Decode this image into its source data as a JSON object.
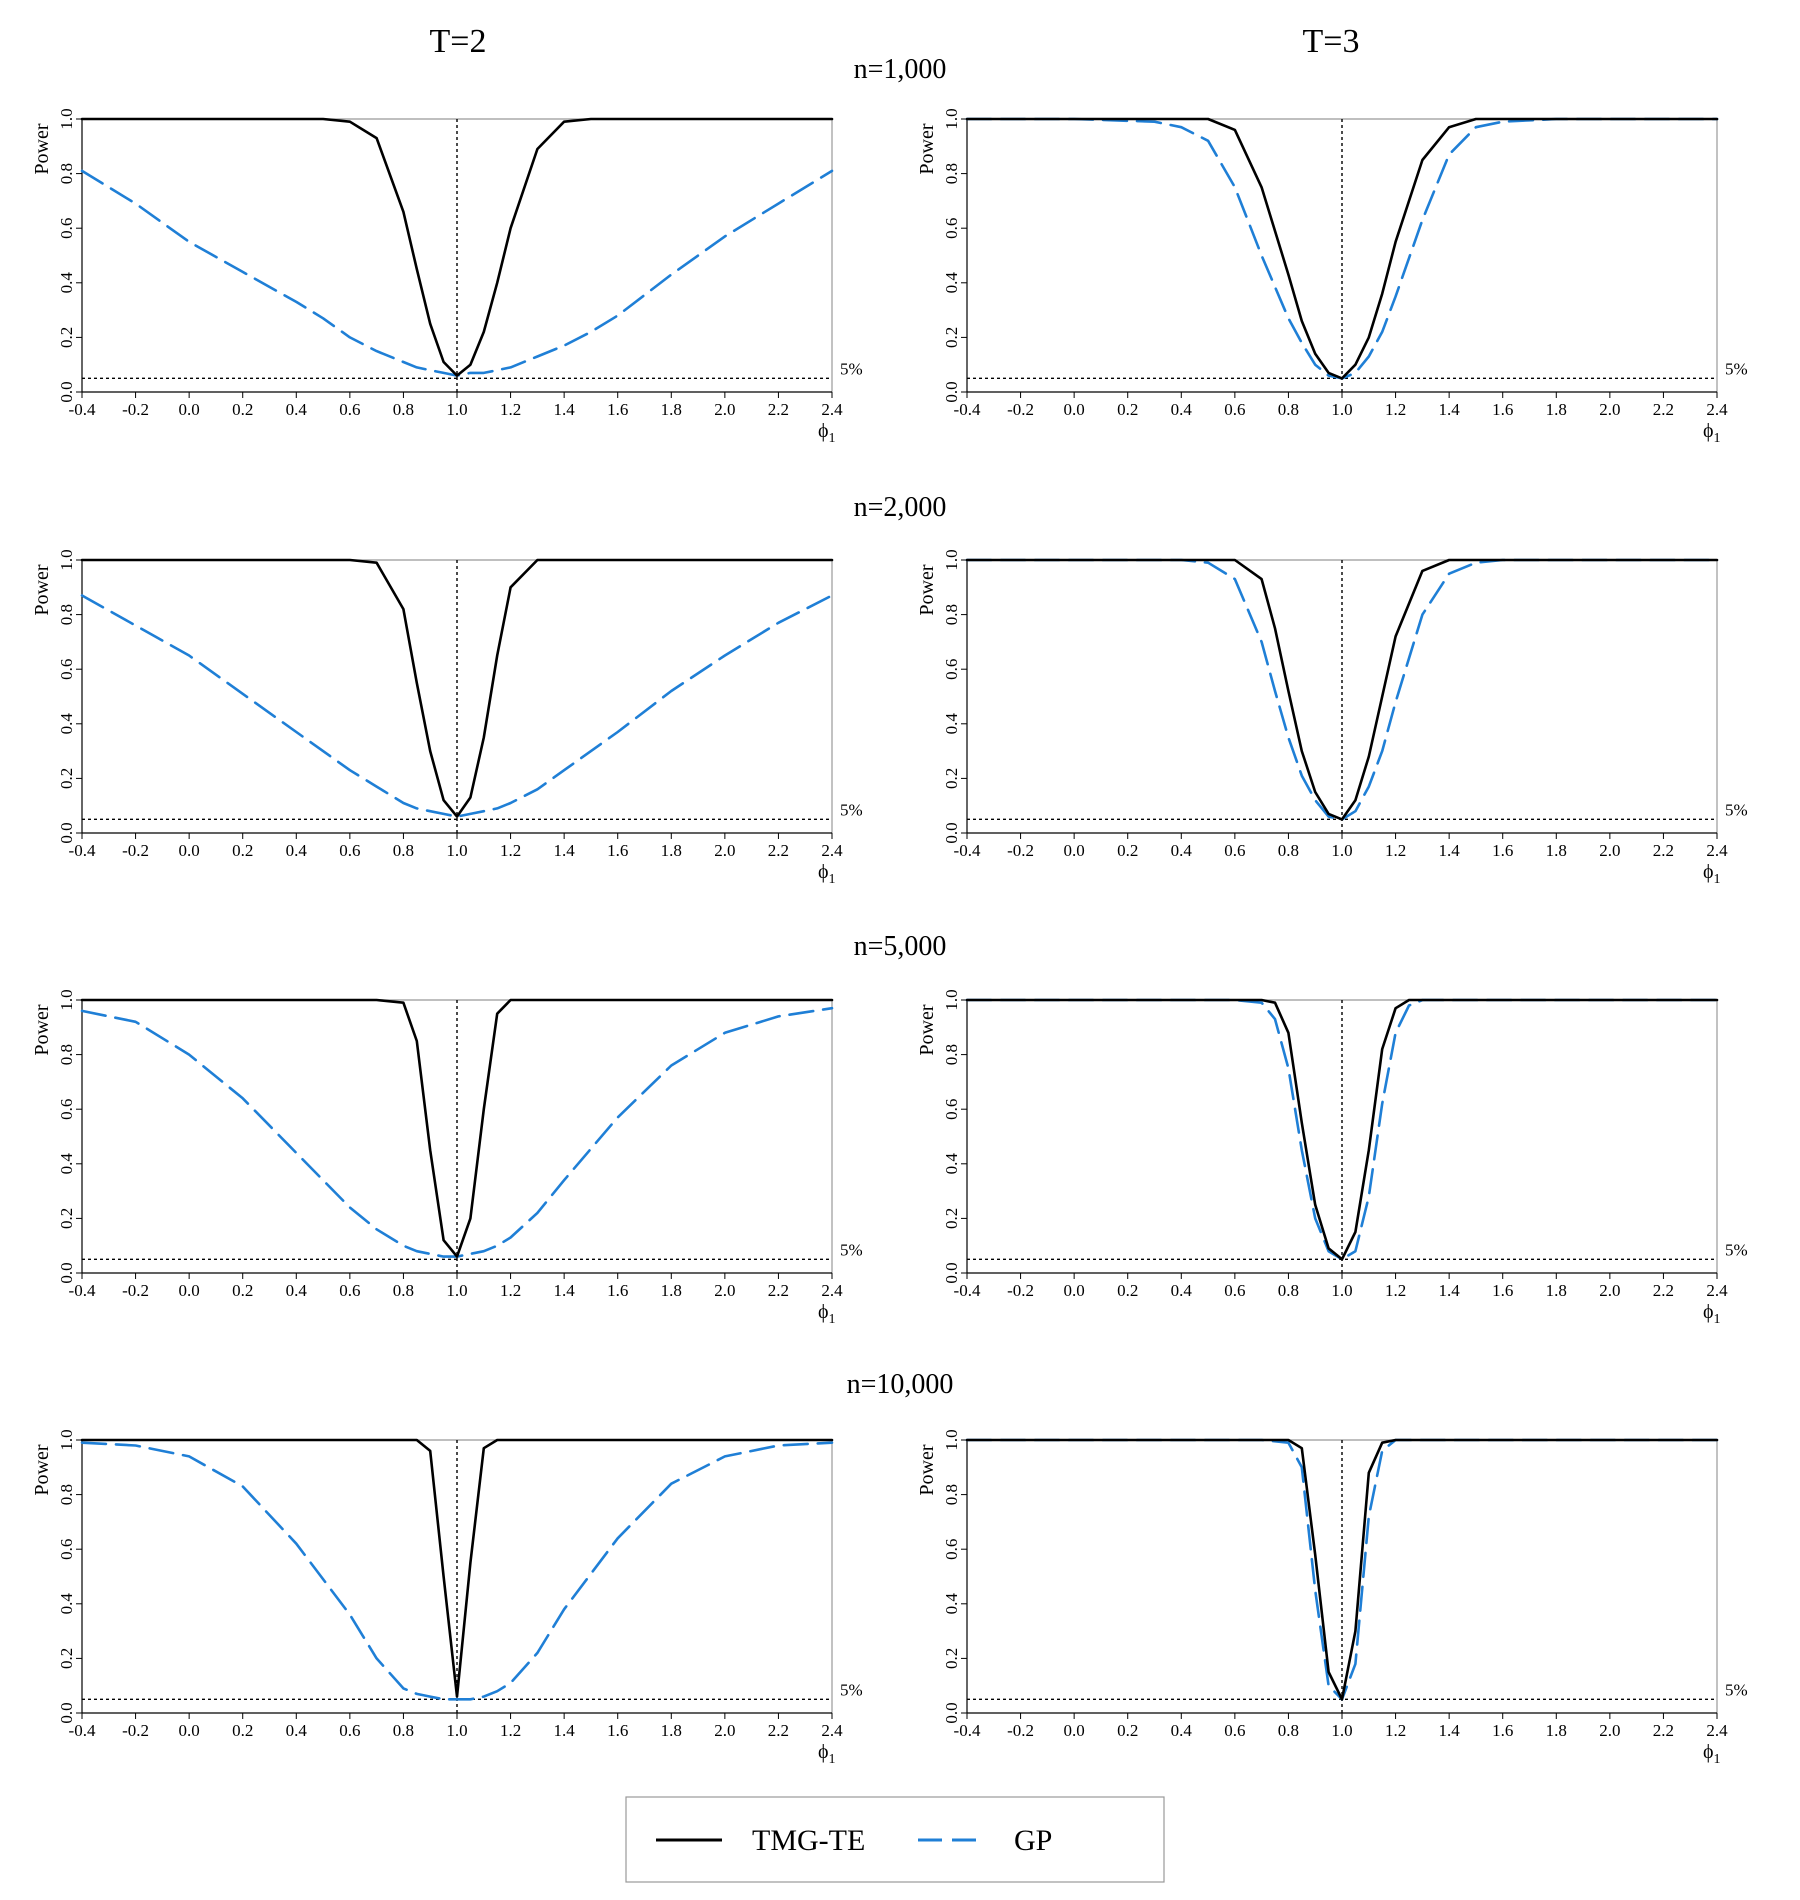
{
  "column_titles": [
    "T=2",
    "T=3"
  ],
  "row_titles": [
    "n=1,000",
    "n=2,000",
    "n=5,000",
    "n=10,000"
  ],
  "legend": [
    {
      "label": "TMG-TE",
      "color": "#000000",
      "dash": "solid"
    },
    {
      "label": "GP",
      "color": "#1f7fd6",
      "dash": "dashed"
    }
  ],
  "chart_data": [
    {
      "type": "line",
      "T": 2,
      "n": "n=1,000",
      "ylabel": "Power",
      "xlabel": "ϕ1",
      "xlim": [
        -0.4,
        2.4
      ],
      "ylim": [
        0,
        1
      ],
      "reference_level": 0.05,
      "reference_label": "5%",
      "reference_x": 1.0,
      "x": [
        -0.4,
        -0.2,
        0.0,
        0.2,
        0.4,
        0.5,
        0.6,
        0.7,
        0.8,
        0.85,
        0.9,
        0.95,
        1.0,
        1.05,
        1.1,
        1.15,
        1.2,
        1.3,
        1.4,
        1.5,
        1.6,
        1.8,
        2.0,
        2.2,
        2.4
      ],
      "series": [
        {
          "name": "TMG-TE",
          "values": [
            1.0,
            1.0,
            1.0,
            1.0,
            1.0,
            1.0,
            0.99,
            0.93,
            0.66,
            0.45,
            0.25,
            0.11,
            0.06,
            0.1,
            0.22,
            0.4,
            0.6,
            0.89,
            0.99,
            1.0,
            1.0,
            1.0,
            1.0,
            1.0,
            1.0
          ]
        },
        {
          "name": "GP",
          "values": [
            0.81,
            0.69,
            0.55,
            0.44,
            0.33,
            0.27,
            0.2,
            0.15,
            0.11,
            0.09,
            0.08,
            0.07,
            0.06,
            0.07,
            0.07,
            0.08,
            0.09,
            0.13,
            0.17,
            0.22,
            0.28,
            0.43,
            0.57,
            0.69,
            0.81
          ]
        }
      ]
    },
    {
      "type": "line",
      "T": 3,
      "n": "n=1,000",
      "ylabel": "Power",
      "xlabel": "ϕ1",
      "xlim": [
        -0.4,
        2.4
      ],
      "ylim": [
        0,
        1
      ],
      "reference_level": 0.05,
      "reference_label": "5%",
      "reference_x": 1.0,
      "x": [
        -0.4,
        0.0,
        0.3,
        0.4,
        0.5,
        0.6,
        0.7,
        0.8,
        0.85,
        0.9,
        0.95,
        1.0,
        1.05,
        1.1,
        1.15,
        1.2,
        1.3,
        1.4,
        1.5,
        1.6,
        1.8,
        2.0,
        2.4
      ],
      "series": [
        {
          "name": "TMG-TE",
          "values": [
            1.0,
            1.0,
            1.0,
            1.0,
            1.0,
            0.96,
            0.75,
            0.43,
            0.26,
            0.14,
            0.07,
            0.05,
            0.1,
            0.2,
            0.36,
            0.55,
            0.85,
            0.97,
            1.0,
            1.0,
            1.0,
            1.0,
            1.0
          ]
        },
        {
          "name": "GP",
          "values": [
            1.0,
            1.0,
            0.99,
            0.97,
            0.92,
            0.75,
            0.5,
            0.27,
            0.18,
            0.1,
            0.06,
            0.05,
            0.07,
            0.13,
            0.22,
            0.35,
            0.63,
            0.87,
            0.97,
            0.99,
            1.0,
            1.0,
            1.0
          ]
        }
      ]
    },
    {
      "type": "line",
      "T": 2,
      "n": "n=2,000",
      "ylabel": "Power",
      "xlabel": "ϕ1",
      "xlim": [
        -0.4,
        2.4
      ],
      "ylim": [
        0,
        1
      ],
      "reference_level": 0.05,
      "reference_label": "5%",
      "reference_x": 1.0,
      "x": [
        -0.4,
        -0.2,
        0.0,
        0.2,
        0.4,
        0.6,
        0.7,
        0.8,
        0.85,
        0.9,
        0.95,
        1.0,
        1.05,
        1.1,
        1.15,
        1.2,
        1.3,
        1.4,
        1.6,
        1.8,
        2.0,
        2.2,
        2.4
      ],
      "series": [
        {
          "name": "TMG-TE",
          "values": [
            1.0,
            1.0,
            1.0,
            1.0,
            1.0,
            1.0,
            0.99,
            0.82,
            0.55,
            0.3,
            0.12,
            0.06,
            0.13,
            0.35,
            0.65,
            0.9,
            1.0,
            1.0,
            1.0,
            1.0,
            1.0,
            1.0,
            1.0
          ]
        },
        {
          "name": "GP",
          "values": [
            0.87,
            0.76,
            0.65,
            0.51,
            0.37,
            0.23,
            0.17,
            0.11,
            0.09,
            0.08,
            0.07,
            0.06,
            0.07,
            0.08,
            0.09,
            0.11,
            0.16,
            0.23,
            0.37,
            0.52,
            0.65,
            0.77,
            0.87
          ]
        }
      ]
    },
    {
      "type": "line",
      "T": 3,
      "n": "n=2,000",
      "ylabel": "Power",
      "xlabel": "ϕ1",
      "xlim": [
        -0.4,
        2.4
      ],
      "ylim": [
        0,
        1
      ],
      "reference_level": 0.05,
      "reference_label": "5%",
      "reference_x": 1.0,
      "x": [
        -0.4,
        0.0,
        0.4,
        0.5,
        0.6,
        0.7,
        0.75,
        0.8,
        0.85,
        0.9,
        0.95,
        1.0,
        1.05,
        1.1,
        1.15,
        1.2,
        1.3,
        1.4,
        1.5,
        1.6,
        2.0,
        2.4
      ],
      "series": [
        {
          "name": "TMG-TE",
          "values": [
            1.0,
            1.0,
            1.0,
            1.0,
            1.0,
            0.93,
            0.75,
            0.52,
            0.3,
            0.15,
            0.07,
            0.05,
            0.12,
            0.28,
            0.5,
            0.72,
            0.96,
            1.0,
            1.0,
            1.0,
            1.0,
            1.0
          ]
        },
        {
          "name": "GP",
          "values": [
            1.0,
            1.0,
            1.0,
            0.99,
            0.93,
            0.7,
            0.52,
            0.35,
            0.21,
            0.12,
            0.06,
            0.05,
            0.08,
            0.17,
            0.3,
            0.48,
            0.8,
            0.95,
            0.99,
            1.0,
            1.0,
            1.0
          ]
        }
      ]
    },
    {
      "type": "line",
      "T": 2,
      "n": "n=5,000",
      "ylabel": "Power",
      "xlabel": "ϕ1",
      "xlim": [
        -0.4,
        2.4
      ],
      "ylim": [
        0,
        1
      ],
      "reference_level": 0.05,
      "reference_label": "5%",
      "reference_x": 1.0,
      "x": [
        -0.4,
        -0.2,
        0.0,
        0.2,
        0.4,
        0.6,
        0.7,
        0.8,
        0.85,
        0.9,
        0.95,
        1.0,
        1.05,
        1.1,
        1.15,
        1.2,
        1.3,
        1.4,
        1.6,
        1.8,
        2.0,
        2.2,
        2.4
      ],
      "series": [
        {
          "name": "TMG-TE",
          "values": [
            1.0,
            1.0,
            1.0,
            1.0,
            1.0,
            1.0,
            1.0,
            0.99,
            0.85,
            0.45,
            0.12,
            0.06,
            0.2,
            0.6,
            0.95,
            1.0,
            1.0,
            1.0,
            1.0,
            1.0,
            1.0,
            1.0,
            1.0
          ]
        },
        {
          "name": "GP",
          "values": [
            0.96,
            0.92,
            0.8,
            0.64,
            0.44,
            0.24,
            0.16,
            0.1,
            0.08,
            0.07,
            0.06,
            0.06,
            0.07,
            0.08,
            0.1,
            0.13,
            0.22,
            0.34,
            0.57,
            0.76,
            0.88,
            0.94,
            0.97
          ]
        }
      ]
    },
    {
      "type": "line",
      "T": 3,
      "n": "n=5,000",
      "ylabel": "Power",
      "xlabel": "ϕ1",
      "xlim": [
        -0.4,
        2.4
      ],
      "ylim": [
        0,
        1
      ],
      "reference_level": 0.05,
      "reference_label": "5%",
      "reference_x": 1.0,
      "x": [
        -0.4,
        0.0,
        0.6,
        0.7,
        0.75,
        0.8,
        0.85,
        0.9,
        0.95,
        1.0,
        1.05,
        1.1,
        1.15,
        1.2,
        1.25,
        1.3,
        1.4,
        2.0,
        2.4
      ],
      "series": [
        {
          "name": "TMG-TE",
          "values": [
            1.0,
            1.0,
            1.0,
            1.0,
            0.99,
            0.88,
            0.55,
            0.25,
            0.09,
            0.05,
            0.15,
            0.45,
            0.82,
            0.97,
            1.0,
            1.0,
            1.0,
            1.0,
            1.0
          ]
        },
        {
          "name": "GP",
          "values": [
            1.0,
            1.0,
            1.0,
            0.99,
            0.93,
            0.75,
            0.45,
            0.2,
            0.08,
            0.05,
            0.08,
            0.28,
            0.62,
            0.88,
            0.98,
            1.0,
            1.0,
            1.0,
            1.0
          ]
        }
      ]
    },
    {
      "type": "line",
      "T": 2,
      "n": "n=10,000",
      "ylabel": "Power",
      "xlabel": "ϕ1",
      "xlim": [
        -0.4,
        2.4
      ],
      "ylim": [
        0,
        1
      ],
      "reference_level": 0.05,
      "reference_label": "5%",
      "reference_x": 1.0,
      "x": [
        -0.4,
        -0.2,
        0.0,
        0.2,
        0.4,
        0.6,
        0.7,
        0.8,
        0.85,
        0.9,
        0.95,
        1.0,
        1.05,
        1.1,
        1.15,
        1.2,
        1.3,
        1.4,
        1.6,
        1.8,
        2.0,
        2.2,
        2.4
      ],
      "series": [
        {
          "name": "TMG-TE",
          "values": [
            1.0,
            1.0,
            1.0,
            1.0,
            1.0,
            1.0,
            1.0,
            1.0,
            1.0,
            0.96,
            0.5,
            0.06,
            0.55,
            0.97,
            1.0,
            1.0,
            1.0,
            1.0,
            1.0,
            1.0,
            1.0,
            1.0,
            1.0
          ]
        },
        {
          "name": "GP",
          "values": [
            0.99,
            0.98,
            0.94,
            0.83,
            0.62,
            0.36,
            0.2,
            0.09,
            0.07,
            0.06,
            0.05,
            0.05,
            0.05,
            0.06,
            0.08,
            0.11,
            0.22,
            0.38,
            0.64,
            0.84,
            0.94,
            0.98,
            0.99
          ]
        }
      ]
    },
    {
      "type": "line",
      "T": 3,
      "n": "n=10,000",
      "ylabel": "Power",
      "xlabel": "ϕ1",
      "xlim": [
        -0.4,
        2.4
      ],
      "ylim": [
        0,
        1
      ],
      "reference_level": 0.05,
      "reference_label": "5%",
      "reference_x": 1.0,
      "x": [
        -0.4,
        0.0,
        0.7,
        0.8,
        0.85,
        0.9,
        0.95,
        1.0,
        1.05,
        1.1,
        1.15,
        1.2,
        1.3,
        2.0,
        2.4
      ],
      "series": [
        {
          "name": "TMG-TE",
          "values": [
            1.0,
            1.0,
            1.0,
            1.0,
            0.97,
            0.58,
            0.15,
            0.05,
            0.3,
            0.88,
            0.99,
            1.0,
            1.0,
            1.0,
            1.0
          ]
        },
        {
          "name": "GP",
          "values": [
            1.0,
            1.0,
            1.0,
            0.99,
            0.9,
            0.45,
            0.1,
            0.05,
            0.18,
            0.72,
            0.96,
            1.0,
            1.0,
            1.0,
            1.0
          ]
        }
      ]
    }
  ]
}
